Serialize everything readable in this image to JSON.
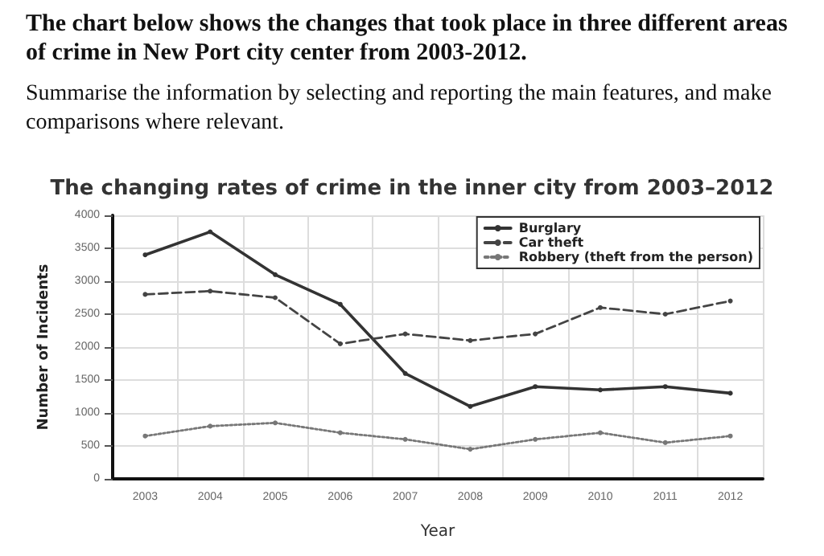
{
  "chart_data": {
    "type": "line",
    "title": "The changing rates of crime in the inner city from 2003–2012",
    "annotations": [
      "The chart below shows the changes that took place in three different areas of crime in New Port city center from 2003-2012.",
      "Summarise the information by selecting and reporting the main features, and make comparisons where relevant."
    ],
    "xlabel": "Year",
    "ylabel": "Number of Incidents",
    "categories": [
      "2003",
      "2004",
      "2005",
      "2006",
      "2007",
      "2008",
      "2009",
      "2010",
      "2011",
      "2012"
    ],
    "series": [
      {
        "name": "Burglary",
        "color": "#333333",
        "line_style": "solid",
        "values": [
          3400,
          3750,
          3100,
          2650,
          1600,
          1100,
          1400,
          1350,
          1400,
          1300
        ]
      },
      {
        "name": "Car theft",
        "color": "#444444",
        "line_style": "dashed",
        "values": [
          2800,
          2850,
          2750,
          2050,
          2200,
          2100,
          2200,
          2600,
          2500,
          2700
        ]
      },
      {
        "name": "Robbery (theft from the person)",
        "color": "#777777",
        "line_style": "dotted",
        "values": [
          650,
          800,
          850,
          700,
          600,
          450,
          600,
          700,
          550,
          650
        ]
      }
    ],
    "ylim": [
      0,
      4000
    ],
    "yticks": [
      0,
      500,
      1000,
      1500,
      2000,
      2500,
      3000,
      3500,
      4000
    ],
    "grid": true,
    "legend": "top right",
    "marker": "circle"
  }
}
